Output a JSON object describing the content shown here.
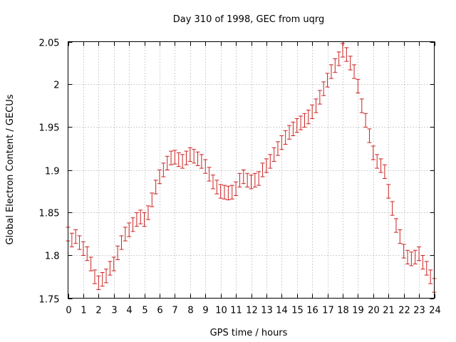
{
  "chart_data": {
    "type": "scatter",
    "title": "Day 310 of 1998, GEC from uqrg",
    "xlabel": "GPS time / hours",
    "ylabel": "Global Electron Content / GECUs",
    "xlim": [
      0,
      24
    ],
    "ylim": [
      1.75,
      2.05
    ],
    "xticks": [
      0,
      1,
      2,
      3,
      4,
      5,
      6,
      7,
      8,
      9,
      10,
      11,
      12,
      13,
      14,
      15,
      16,
      17,
      18,
      19,
      20,
      21,
      22,
      23,
      24
    ],
    "yticks": [
      1.75,
      1.8,
      1.85,
      1.9,
      1.95,
      2.0,
      2.05
    ],
    "ytick_labels": [
      "1.75",
      "1.8",
      "1.85",
      "1.9",
      "1.95",
      "2",
      "2.05"
    ],
    "grid": true,
    "error_bar_halfwidth": 0.008,
    "series_color": "#cc2222",
    "x": [
      0,
      0.25,
      0.5,
      0.75,
      1,
      1.25,
      1.5,
      1.75,
      2,
      2.25,
      2.5,
      2.75,
      3,
      3.25,
      3.5,
      3.75,
      4,
      4.25,
      4.5,
      4.75,
      5,
      5.25,
      5.5,
      5.75,
      6,
      6.25,
      6.5,
      6.75,
      7,
      7.25,
      7.5,
      7.75,
      8,
      8.25,
      8.5,
      8.75,
      9,
      9.25,
      9.5,
      9.75,
      10,
      10.25,
      10.5,
      10.75,
      11,
      11.25,
      11.5,
      11.75,
      12,
      12.25,
      12.5,
      12.75,
      13,
      13.25,
      13.5,
      13.75,
      14,
      14.25,
      14.5,
      14.75,
      15,
      15.25,
      15.5,
      15.75,
      16,
      16.25,
      16.5,
      16.75,
      17,
      17.25,
      17.5,
      17.75,
      18,
      18.25,
      18.5,
      18.75,
      19,
      19.25,
      19.5,
      19.75,
      20,
      20.25,
      20.5,
      20.75,
      21,
      21.25,
      21.5,
      21.75,
      22,
      22.25,
      22.5,
      22.75,
      23,
      23.25,
      23.5,
      23.75,
      24
    ],
    "y": [
      1.825,
      1.818,
      1.822,
      1.815,
      1.808,
      1.802,
      1.79,
      1.775,
      1.768,
      1.772,
      1.776,
      1.785,
      1.79,
      1.803,
      1.815,
      1.825,
      1.83,
      1.836,
      1.842,
      1.845,
      1.842,
      1.85,
      1.865,
      1.88,
      1.892,
      1.9,
      1.908,
      1.914,
      1.915,
      1.912,
      1.91,
      1.914,
      1.918,
      1.916,
      1.913,
      1.91,
      1.904,
      1.895,
      1.886,
      1.88,
      1.875,
      1.874,
      1.873,
      1.874,
      1.878,
      1.888,
      1.892,
      1.888,
      1.886,
      1.888,
      1.89,
      1.9,
      1.905,
      1.91,
      1.918,
      1.925,
      1.932,
      1.938,
      1.944,
      1.948,
      1.952,
      1.955,
      1.958,
      1.962,
      1.968,
      1.975,
      1.985,
      1.995,
      2.005,
      2.015,
      2.022,
      2.03,
      2.04,
      2.035,
      2.025,
      2.015,
      1.998,
      1.975,
      1.958,
      1.94,
      1.92,
      1.91,
      1.905,
      1.898,
      1.875,
      1.855,
      1.835,
      1.822,
      1.805,
      1.798,
      1.796,
      1.798,
      1.802,
      1.792,
      1.785,
      1.775,
      1.765
    ]
  }
}
